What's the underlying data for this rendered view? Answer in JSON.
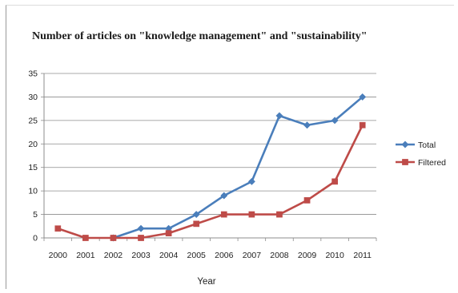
{
  "chart_data": {
    "type": "line",
    "title": "Number of articles on \"knowledge management\" and \"sustainability\"",
    "xlabel": "Year",
    "ylabel": "",
    "categories": [
      "2000",
      "2001",
      "2002",
      "2003",
      "2004",
      "2005",
      "2006",
      "2007",
      "2008",
      "2009",
      "2010",
      "2011"
    ],
    "ylim": [
      0,
      35
    ],
    "yticks": [
      0,
      5,
      10,
      15,
      20,
      25,
      30,
      35
    ],
    "grid": true,
    "legend": "right",
    "series": [
      {
        "name": "Total",
        "color": "#4a7ebb",
        "marker": "diamond",
        "values": [
          null,
          null,
          0,
          2,
          2,
          5,
          9,
          12,
          26,
          24,
          25,
          30
        ]
      },
      {
        "name": "Filtered",
        "color": "#be4b48",
        "marker": "square",
        "values": [
          2,
          0,
          0,
          0,
          1,
          3,
          5,
          5,
          5,
          8,
          12,
          24
        ]
      }
    ]
  }
}
